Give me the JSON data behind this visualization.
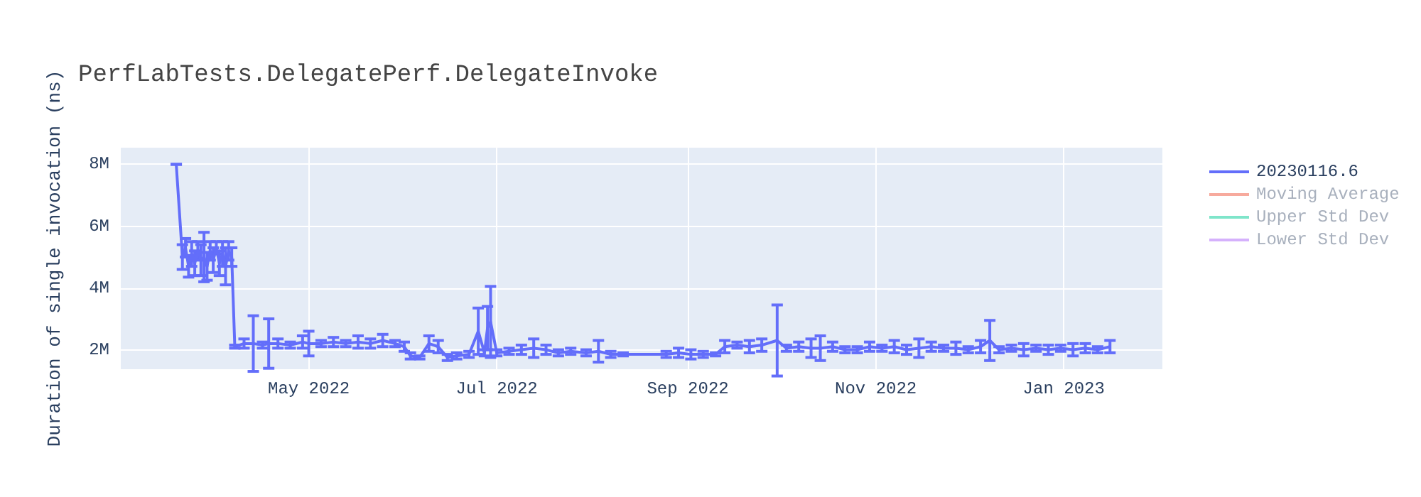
{
  "chart_data": {
    "type": "line",
    "title": "PerfLabTests.DelegatePerf.DelegateInvoke",
    "ylabel": "Duration of single invocation (ns)",
    "xlim": [
      "2022-03-01",
      "2023-02-02"
    ],
    "xticks": [
      {
        "value": "2022-05-01",
        "label": "May 2022"
      },
      {
        "value": "2022-07-01",
        "label": "Jul 2022"
      },
      {
        "value": "2022-09-01",
        "label": "Sep 2022"
      },
      {
        "value": "2022-11-01",
        "label": "Nov 2022"
      },
      {
        "value": "2023-01-01",
        "label": "Jan 2023"
      }
    ],
    "ylim": [
      1370000,
      8540000
    ],
    "yticks": [
      {
        "value": 2000000,
        "label": "2M"
      },
      {
        "value": 4000000,
        "label": "4M"
      },
      {
        "value": 6000000,
        "label": "6M"
      },
      {
        "value": 8000000,
        "label": "8M"
      }
    ],
    "grid": true,
    "legend": "top right",
    "marker": "none",
    "line_style": "solid",
    "series": [
      {
        "name": "20230116.6",
        "color": "#636efa",
        "x": [
          "2022-03-19",
          "2022-03-21",
          "2022-03-22",
          "2022-03-23",
          "2022-03-24",
          "2022-03-25",
          "2022-03-26",
          "2022-03-27",
          "2022-03-28",
          "2022-03-29",
          "2022-03-30",
          "2022-03-31",
          "2022-04-01",
          "2022-04-02",
          "2022-04-03",
          "2022-04-04",
          "2022-04-05",
          "2022-04-06",
          "2022-04-07",
          "2022-04-10",
          "2022-04-13",
          "2022-04-16",
          "2022-04-18",
          "2022-04-21",
          "2022-04-25",
          "2022-04-29",
          "2022-05-01",
          "2022-05-05",
          "2022-05-09",
          "2022-05-13",
          "2022-05-17",
          "2022-05-21",
          "2022-05-25",
          "2022-05-29",
          "2022-06-01",
          "2022-06-03",
          "2022-06-06",
          "2022-06-09",
          "2022-06-12",
          "2022-06-15",
          "2022-06-18",
          "2022-06-22",
          "2022-06-25",
          "2022-06-27",
          "2022-06-28",
          "2022-06-29",
          "2022-07-01",
          "2022-07-05",
          "2022-07-09",
          "2022-07-13",
          "2022-07-17",
          "2022-07-21",
          "2022-07-25",
          "2022-07-30",
          "2022-08-03",
          "2022-08-07",
          "2022-08-11",
          "2022-08-25",
          "2022-08-29",
          "2022-09-02",
          "2022-09-06",
          "2022-09-10",
          "2022-09-13",
          "2022-09-17",
          "2022-09-21",
          "2022-09-25",
          "2022-09-30",
          "2022-10-03",
          "2022-10-07",
          "2022-10-11",
          "2022-10-14",
          "2022-10-18",
          "2022-10-22",
          "2022-10-26",
          "2022-10-30",
          "2022-11-03",
          "2022-11-07",
          "2022-11-11",
          "2022-11-15",
          "2022-11-19",
          "2022-11-23",
          "2022-11-27",
          "2022-12-01",
          "2022-12-05",
          "2022-12-08",
          "2022-12-11",
          "2022-12-15",
          "2022-12-19",
          "2022-12-23",
          "2022-12-27",
          "2022-12-31",
          "2023-01-04",
          "2023-01-08",
          "2023-01-12",
          "2023-01-16"
        ],
        "values": [
          8000000,
          5000000,
          5300000,
          4700000,
          5100000,
          4800000,
          5200000,
          4900000,
          5000000,
          4700000,
          5200000,
          4900000,
          5300000,
          4800000,
          5100000,
          4700000,
          5200000,
          5000000,
          2100000,
          2200000,
          2200000,
          2150000,
          2200000,
          2200000,
          2150000,
          2250000,
          2200000,
          2200000,
          2250000,
          2200000,
          2250000,
          2200000,
          2300000,
          2200000,
          2100000,
          1800000,
          1750000,
          2200000,
          2100000,
          1750000,
          1800000,
          1850000,
          2600000,
          1900000,
          2700000,
          2900000,
          1900000,
          1950000,
          2000000,
          2050000,
          2000000,
          1900000,
          1950000,
          1900000,
          1950000,
          1850000,
          1850000,
          1850000,
          1900000,
          1850000,
          1850000,
          1850000,
          2100000,
          2150000,
          2100000,
          2150000,
          2300000,
          2050000,
          2100000,
          2050000,
          2050000,
          2100000,
          2000000,
          2000000,
          2100000,
          2050000,
          2100000,
          2000000,
          2050000,
          2100000,
          2050000,
          2050000,
          2000000,
          2100000,
          2300000,
          2000000,
          2050000,
          2000000,
          2050000,
          2000000,
          2050000,
          2000000,
          2050000,
          2000000,
          2100000
        ],
        "errors": [
          0,
          400000,
          300000,
          350000,
          400000,
          400000,
          300000,
          500000,
          800000,
          450000,
          300000,
          400000,
          200000,
          400000,
          400000,
          600000,
          300000,
          300000,
          50000,
          150000,
          900000,
          100000,
          800000,
          150000,
          100000,
          200000,
          400000,
          100000,
          150000,
          100000,
          200000,
          150000,
          200000,
          100000,
          150000,
          100000,
          50000,
          250000,
          200000,
          100000,
          100000,
          100000,
          750000,
          100000,
          700000,
          1150000,
          100000,
          100000,
          150000,
          300000,
          150000,
          100000,
          100000,
          100000,
          350000,
          100000,
          50000,
          100000,
          150000,
          150000,
          100000,
          50000,
          200000,
          100000,
          200000,
          200000,
          1150000,
          100000,
          150000,
          300000,
          400000,
          150000,
          100000,
          100000,
          150000,
          100000,
          200000,
          150000,
          300000,
          150000,
          100000,
          200000,
          100000,
          200000,
          650000,
          100000,
          100000,
          200000,
          100000,
          150000,
          100000,
          200000,
          150000,
          100000,
          200000
        ]
      },
      {
        "name": "Moving Average",
        "color": "#ef553b"
      },
      {
        "name": "Upper Std Dev",
        "color": "#00cc96"
      },
      {
        "name": "Lower Std Dev",
        "color": "#ab63fa"
      }
    ]
  }
}
